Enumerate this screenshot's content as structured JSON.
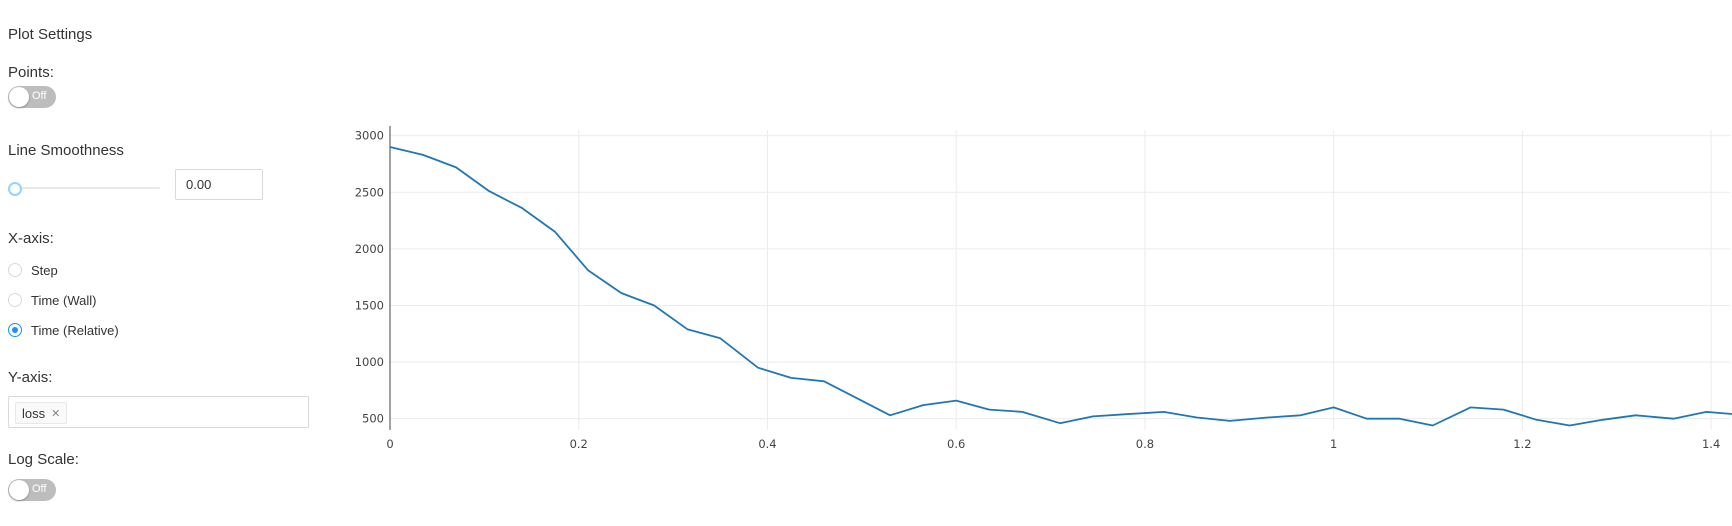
{
  "settings": {
    "title": "Plot Settings",
    "points_label": "Points:",
    "points_toggle": "Off",
    "smoothness_label": "Line Smoothness",
    "smoothness_value": "0.00",
    "xaxis_label": "X-axis:",
    "xaxis_options": [
      "Step",
      "Time (Wall)",
      "Time (Relative)"
    ],
    "xaxis_selected": "Time (Relative)",
    "yaxis_label": "Y-axis:",
    "yaxis_tags": [
      "loss"
    ],
    "logscale_label": "Log Scale:",
    "logscale_toggle": "Off"
  },
  "colors": {
    "accent": "#1890ff",
    "line": "#1f77b4",
    "toggle_off": "#bdbdbd"
  },
  "chart_data": {
    "type": "line",
    "title": "",
    "xlabel": "",
    "ylabel": "",
    "xlim": [
      0,
      1.42
    ],
    "ylim": [
      400,
      3050
    ],
    "x_ticks": [
      "0",
      "0.2",
      "0.4",
      "0.6",
      "0.8",
      "1",
      "1.2",
      "1.4"
    ],
    "y_ticks": [
      "500",
      "1000",
      "1500",
      "2000",
      "2500",
      "3000"
    ],
    "grid": true,
    "series": [
      {
        "name": "",
        "x": [
          0,
          0.035,
          0.07,
          0.105,
          0.14,
          0.175,
          0.21,
          0.245,
          0.28,
          0.315,
          0.35,
          0.39,
          0.425,
          0.46,
          0.495,
          0.53,
          0.565,
          0.6,
          0.635,
          0.67,
          0.71,
          0.745,
          0.78,
          0.82,
          0.855,
          0.89,
          0.93,
          0.965,
          1.0,
          1.035,
          1.07,
          1.105,
          1.145,
          1.18,
          1.215,
          1.25,
          1.285,
          1.32,
          1.36,
          1.395,
          1.425
        ],
        "values": [
          2900,
          2830,
          2720,
          2510,
          2360,
          2150,
          1810,
          1610,
          1500,
          1290,
          1210,
          950,
          860,
          830,
          680,
          530,
          620,
          660,
          580,
          560,
          460,
          520,
          540,
          560,
          510,
          480,
          510,
          530,
          600,
          500,
          500,
          440,
          600,
          580,
          490,
          440,
          490,
          530,
          500,
          560,
          540
        ]
      }
    ]
  }
}
